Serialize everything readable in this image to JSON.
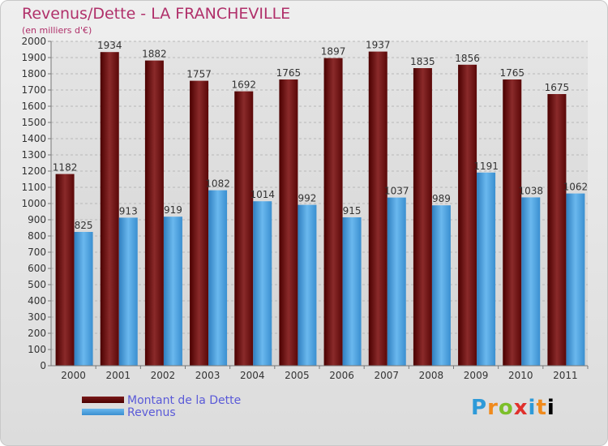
{
  "chart_data": {
    "type": "bar",
    "title": "Revenus/Dette - LA FRANCHEVILLE",
    "subtitle": "(en milliers d'€)",
    "categories": [
      "2000",
      "2001",
      "2002",
      "2003",
      "2004",
      "2005",
      "2006",
      "2007",
      "2008",
      "2009",
      "2010",
      "2011"
    ],
    "series": [
      {
        "name": "Montant de la Dette",
        "color": "#6b0f0f",
        "values": [
          1182,
          1934,
          1882,
          1757,
          1692,
          1765,
          1897,
          1937,
          1835,
          1856,
          1765,
          1675
        ]
      },
      {
        "name": "Revenus",
        "color": "#4aa3e6",
        "values": [
          825,
          913,
          919,
          1082,
          1014,
          992,
          915,
          1037,
          989,
          1191,
          1038,
          1062
        ]
      }
    ],
    "ylim": [
      0,
      2000
    ],
    "yticks": [
      0,
      100,
      200,
      300,
      400,
      500,
      600,
      700,
      800,
      900,
      1000,
      1100,
      1200,
      1300,
      1400,
      1500,
      1600,
      1700,
      1800,
      1900,
      2000
    ],
    "grid": true,
    "legend": "bottom-left"
  },
  "logo": {
    "letters": [
      "P",
      "r",
      "o",
      "x",
      "i",
      "t",
      "i"
    ]
  }
}
